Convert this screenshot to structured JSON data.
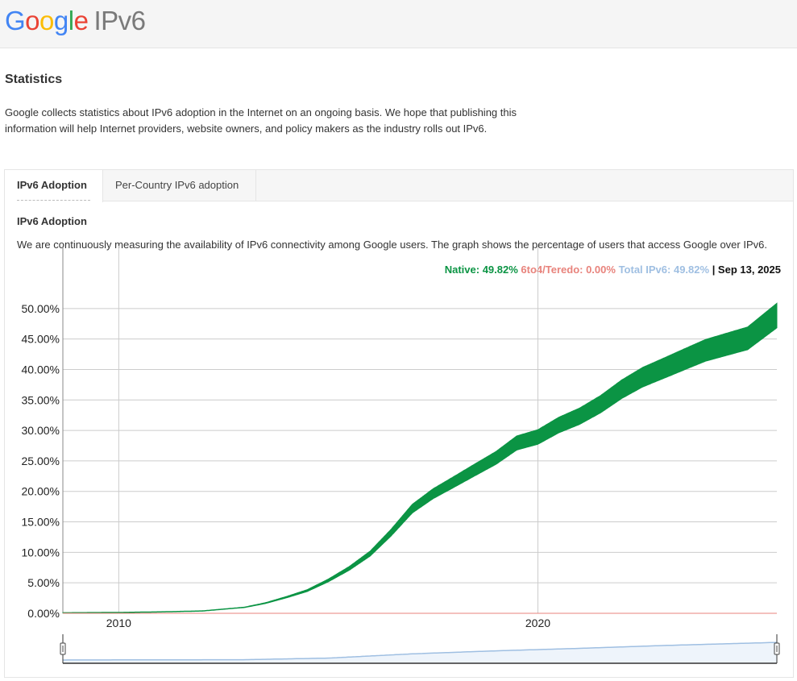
{
  "logo": {
    "letters": [
      "G",
      "o",
      "o",
      "g",
      "l",
      "e"
    ],
    "product": "IPv6"
  },
  "page": {
    "title": "Statistics",
    "intro": "Google collects statistics about IPv6 adoption in the Internet on an ongoing basis. We hope that publishing this information will help Internet providers, website owners, and policy makers as the industry rolls out IPv6."
  },
  "tabs": [
    {
      "label": "IPv6 Adoption",
      "active": true
    },
    {
      "label": "Per-Country IPv6 adoption",
      "active": false
    }
  ],
  "section": {
    "title": "IPv6 Adoption",
    "description": "We are continuously measuring the availability of IPv6 connectivity among Google users. The graph shows the percentage of users that access Google over IPv6."
  },
  "legend": {
    "native": "Native: 49.82%",
    "teredo": "6to4/Teredo: 0.00%",
    "total": "Total IPv6: 49.82%",
    "date": "| Sep 13, 2025"
  },
  "colors": {
    "native": "#0b9444",
    "teredo": "#e8837c",
    "total": "#9fbfe2",
    "grid": "#cccccc"
  },
  "chart_data": {
    "type": "area",
    "title": "",
    "xlabel": "",
    "ylabel": "",
    "x_ticks": [
      "2010",
      "2020"
    ],
    "y_ticks": [
      "0.00%",
      "5.00%",
      "10.00%",
      "15.00%",
      "20.00%",
      "25.00%",
      "30.00%",
      "35.00%",
      "40.00%",
      "45.00%",
      "50.00%"
    ],
    "xlim": [
      "2008-09-01",
      "2025-09-13"
    ],
    "ylim": [
      0,
      55
    ],
    "grid": true,
    "range_selector": true,
    "series": [
      {
        "name": "Native",
        "color": "#0b9444",
        "points": [
          [
            "2008-09-01",
            0.1
          ],
          [
            "2010-01-01",
            0.15
          ],
          [
            "2011-01-01",
            0.25
          ],
          [
            "2012-01-01",
            0.4
          ],
          [
            "2013-01-01",
            1.0
          ],
          [
            "2013-07-01",
            1.7
          ],
          [
            "2014-01-01",
            2.7
          ],
          [
            "2014-07-01",
            3.8
          ],
          [
            "2015-01-01",
            5.5
          ],
          [
            "2015-07-01",
            7.5
          ],
          [
            "2016-01-01",
            10.0
          ],
          [
            "2016-07-01",
            13.5
          ],
          [
            "2017-01-01",
            17.5
          ],
          [
            "2017-07-01",
            20.0
          ],
          [
            "2018-01-01",
            22.0
          ],
          [
            "2018-07-01",
            24.0
          ],
          [
            "2019-01-01",
            26.0
          ],
          [
            "2019-07-01",
            28.5
          ],
          [
            "2020-01-01",
            29.5
          ],
          [
            "2020-07-01",
            31.5
          ],
          [
            "2021-01-01",
            33.0
          ],
          [
            "2021-07-01",
            35.0
          ],
          [
            "2022-01-01",
            37.5
          ],
          [
            "2022-07-01",
            39.5
          ],
          [
            "2023-01-01",
            41.0
          ],
          [
            "2023-07-01",
            42.5
          ],
          [
            "2024-01-01",
            44.0
          ],
          [
            "2024-07-01",
            45.0
          ],
          [
            "2025-01-01",
            46.0
          ],
          [
            "2025-09-13",
            49.82
          ]
        ]
      },
      {
        "name": "6to4/Teredo",
        "color": "#e8837c",
        "points": [
          [
            "2008-09-01",
            0.0
          ],
          [
            "2025-09-13",
            0.0
          ]
        ]
      },
      {
        "name": "Total IPv6",
        "color": "#9fbfe2",
        "points": [
          [
            "2008-09-01",
            0.1
          ],
          [
            "2013-01-01",
            1.0
          ],
          [
            "2015-01-01",
            5.5
          ],
          [
            "2017-01-01",
            17.5
          ],
          [
            "2019-01-01",
            26.0
          ],
          [
            "2021-01-01",
            33.0
          ],
          [
            "2023-01-01",
            41.0
          ],
          [
            "2025-09-13",
            49.82
          ]
        ]
      }
    ]
  }
}
